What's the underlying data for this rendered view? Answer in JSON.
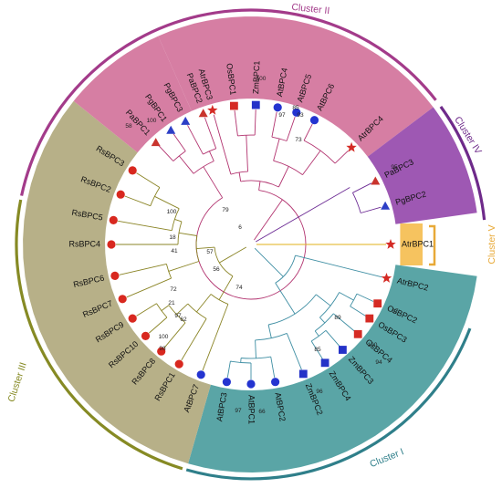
{
  "figure": {
    "colors": {
      "cluster_i": "#5aa5a6",
      "cluster_ii": "#d67ea3",
      "cluster_iii": "#b7b088",
      "cluster_iv": "#9e58b3",
      "cluster_v": "#f6c35f",
      "ring_i": "#2f7f8a",
      "ring_ii": "#a33b8a",
      "ring_iii": "#868a24",
      "ring_iv": "#6e2a8a",
      "ring_v": "#e8a937",
      "branch_i": "#3e8ea3",
      "branch_ii": "#b2336f",
      "branch_iii": "#8a8425",
      "branch_iv": "#6c2b94",
      "branch_v": "#e0b21a"
    },
    "clusters": [
      {
        "id": "i",
        "label": "Cluster I"
      },
      {
        "id": "ii",
        "label": "Cluster II"
      },
      {
        "id": "iii",
        "label": "Cluster III"
      },
      {
        "id": "iv",
        "label": "Cluster IV"
      },
      {
        "id": "v",
        "label": "Cluster V"
      }
    ],
    "markers": {
      "Atr": {
        "shape": "star",
        "color": "#d42a24"
      },
      "Os": {
        "shape": "square",
        "color": "#d52b24"
      },
      "Zm": {
        "shape": "square",
        "color": "#2432c8"
      },
      "At": {
        "shape": "circle",
        "color": "#2434d0"
      },
      "Pa": {
        "shape": "triangle",
        "color": "#c9342d"
      },
      "Pg": {
        "shape": "triangle",
        "color": "#2d3fc6"
      },
      "Rs": {
        "shape": "circle",
        "color": "#d8281f"
      }
    },
    "leaves": [
      {
        "name": "AtrBPC3",
        "cluster": "ii",
        "marker": "Atr"
      },
      {
        "name": "OsBPC1",
        "cluster": "ii",
        "marker": "Os"
      },
      {
        "name": "ZmBPC1",
        "cluster": "ii",
        "marker": "Zm"
      },
      {
        "name": "AtBPC4",
        "cluster": "ii",
        "marker": "At"
      },
      {
        "name": "AtBPC5",
        "cluster": "ii",
        "marker": "At"
      },
      {
        "name": "AtBPC6",
        "cluster": "ii",
        "marker": "At"
      },
      {
        "name": "AtrBPC4",
        "cluster": "ii",
        "marker": "Atr"
      },
      {
        "name": "PaBPC3",
        "cluster": "iv",
        "marker": "Pa"
      },
      {
        "name": "PgBPC2",
        "cluster": "iv",
        "marker": "Pg"
      },
      {
        "name": "AtrBPC1",
        "cluster": "v",
        "marker": "Atr"
      },
      {
        "name": "AtrBPC2",
        "cluster": "i",
        "marker": "Atr"
      },
      {
        "name": "OsBPC2",
        "cluster": "i",
        "marker": "Os"
      },
      {
        "name": "OsBPC3",
        "cluster": "i",
        "marker": "Os"
      },
      {
        "name": "OsBPC4",
        "cluster": "i",
        "marker": "Os"
      },
      {
        "name": "ZmBPC3",
        "cluster": "i",
        "marker": "Zm"
      },
      {
        "name": "ZmBPC4",
        "cluster": "i",
        "marker": "Zm"
      },
      {
        "name": "ZmBPC2",
        "cluster": "i",
        "marker": "Zm"
      },
      {
        "name": "AtBPC2",
        "cluster": "i",
        "marker": "At"
      },
      {
        "name": "AtBPC1",
        "cluster": "i",
        "marker": "At"
      },
      {
        "name": "AtBPC3",
        "cluster": "i",
        "marker": "At"
      },
      {
        "name": "AtBPC7",
        "cluster": "iii",
        "marker": "At"
      },
      {
        "name": "RsBPC1",
        "cluster": "iii",
        "marker": "Rs"
      },
      {
        "name": "RsBPC8",
        "cluster": "iii",
        "marker": "Rs"
      },
      {
        "name": "RsBPC10",
        "cluster": "iii",
        "marker": "Rs"
      },
      {
        "name": "RsBPC9",
        "cluster": "iii",
        "marker": "Rs"
      },
      {
        "name": "RsBPC7",
        "cluster": "iii",
        "marker": "Rs"
      },
      {
        "name": "RsBPC6",
        "cluster": "iii",
        "marker": "Rs"
      },
      {
        "name": "RsBPC4",
        "cluster": "iii",
        "marker": "Rs"
      },
      {
        "name": "RsBPC5",
        "cluster": "iii",
        "marker": "Rs"
      },
      {
        "name": "RsBPC2",
        "cluster": "iii",
        "marker": "Rs"
      },
      {
        "name": "RsBPC3",
        "cluster": "iii",
        "marker": "Rs"
      },
      {
        "name": "PaBPC1",
        "cluster": "ii",
        "marker": "Pa"
      },
      {
        "name": "PgBPC1",
        "cluster": "ii",
        "marker": "Pg"
      },
      {
        "name": "PgBPC3",
        "cluster": "ii",
        "marker": "Pg"
      },
      {
        "name": "PaBPC2",
        "cluster": "ii",
        "marker": "Pa"
      }
    ],
    "bootstrap_values": [
      "100",
      "97",
      "85",
      "93",
      "73",
      "79",
      "95",
      "6",
      "100",
      "58",
      "100",
      "18",
      "41",
      "57",
      "56",
      "74",
      "72",
      "21",
      "97",
      "62",
      "100",
      "98",
      "89",
      "97",
      "100",
      "94",
      "85",
      "96",
      "66",
      "97"
    ]
  }
}
